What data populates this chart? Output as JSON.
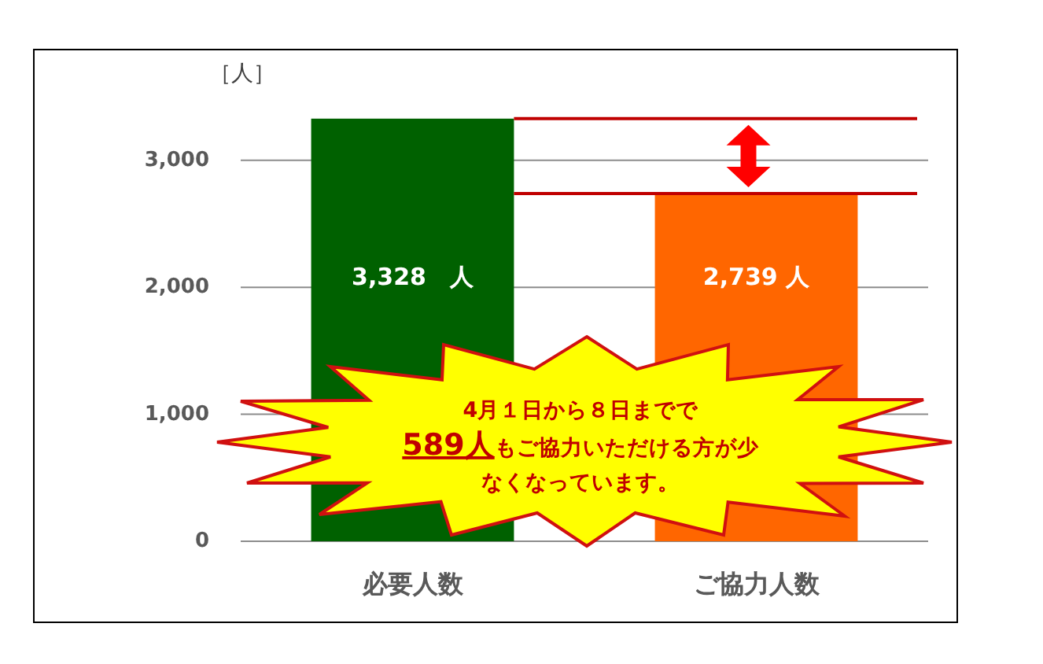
{
  "chart_data": {
    "type": "bar",
    "ylabel": "［人］",
    "categories": [
      "必要人数",
      "ご協力人数"
    ],
    "values": [
      3328,
      2739
    ],
    "colors": [
      "#006100",
      "#ff6600"
    ],
    "value_labels": [
      "3,328　人",
      "2,739 人"
    ],
    "ylim": [
      0,
      3328
    ],
    "yticks": [
      0,
      {
        "value": 1000,
        "label": "1,000"
      },
      {
        "value": 2000,
        "label": "2,000"
      },
      {
        "value": 3000,
        "label": "3,000"
      }
    ],
    "grid": "y",
    "ref_lines": [
      {
        "axis": "y",
        "value": 3328,
        "color": "#c00000"
      },
      {
        "axis": "y",
        "value": 2739,
        "color": "#c00000"
      }
    ],
    "annotations": [
      "4月１日から８日までで589人もご協力いただける方が少なくなっています。"
    ]
  }
}
